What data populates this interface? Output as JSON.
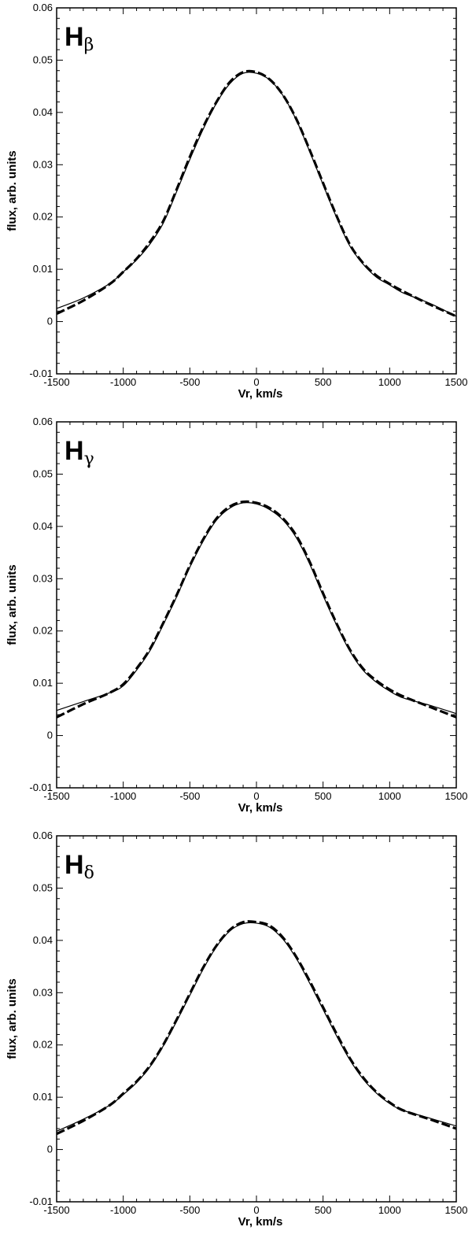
{
  "chart_data": [
    {
      "type": "line",
      "title": "",
      "panel_label": "H",
      "panel_label_sub": "β",
      "xlabel": "Vr, km/s",
      "ylabel": "flux, arb. units",
      "xlim": [
        -1500,
        1500
      ],
      "ylim": [
        -0.01,
        0.06
      ],
      "x_ticks": [
        -1500,
        -1000,
        -500,
        0,
        500,
        1000,
        1500
      ],
      "y_ticks": [
        -0.01,
        0,
        0.01,
        0.02,
        0.03,
        0.04,
        0.05,
        0.06
      ],
      "x_tick_labels": [
        "-1500",
        "-1000",
        "-500",
        "0",
        "500",
        "1000",
        "1500"
      ],
      "y_tick_labels": [
        "-0.01",
        "0",
        "0.01",
        "0.02",
        "0.03",
        "0.04",
        "0.05",
        "0.06"
      ],
      "grid": false,
      "series": [
        {
          "style": "solid",
          "x": [
            -1500,
            -1300,
            -1100,
            -1000,
            -900,
            -800,
            -700,
            -600,
            -500,
            -400,
            -300,
            -200,
            -100,
            0,
            100,
            200,
            300,
            400,
            500,
            600,
            700,
            800,
            900,
            1000,
            1100,
            1300,
            1500
          ],
          "y": [
            0.0025,
            0.0045,
            0.0073,
            0.0095,
            0.0118,
            0.0148,
            0.0188,
            0.0248,
            0.031,
            0.0368,
            0.0418,
            0.0455,
            0.0475,
            0.0475,
            0.0462,
            0.0432,
            0.0385,
            0.0325,
            0.0262,
            0.02,
            0.0145,
            0.011,
            0.0085,
            0.007,
            0.0055,
            0.0035,
            0.001
          ]
        },
        {
          "style": "dashed",
          "x": [
            -1500,
            -1300,
            -1100,
            -1000,
            -900,
            -800,
            -700,
            -600,
            -500,
            -400,
            -300,
            -200,
            -100,
            0,
            100,
            200,
            300,
            400,
            500,
            600,
            700,
            800,
            900,
            1000,
            1100,
            1300,
            1500
          ],
          "y": [
            0.0015,
            0.004,
            0.0072,
            0.0095,
            0.012,
            0.0152,
            0.0192,
            0.0252,
            0.0315,
            0.0372,
            0.042,
            0.0458,
            0.0477,
            0.0477,
            0.0463,
            0.0433,
            0.0387,
            0.0328,
            0.0265,
            0.0203,
            0.0148,
            0.0112,
            0.0088,
            0.0072,
            0.0058,
            0.0033,
            0.001
          ]
        }
      ]
    },
    {
      "type": "line",
      "title": "",
      "panel_label": "H",
      "panel_label_sub": "γ",
      "xlabel": "Vr, km/s",
      "ylabel": "flux, arb. units",
      "xlim": [
        -1500,
        1500
      ],
      "ylim": [
        -0.01,
        0.06
      ],
      "x_ticks": [
        -1500,
        -1000,
        -500,
        0,
        500,
        1000,
        1500
      ],
      "y_ticks": [
        -0.01,
        0,
        0.01,
        0.02,
        0.03,
        0.04,
        0.05,
        0.06
      ],
      "x_tick_labels": [
        "-1500",
        "-1000",
        "-500",
        "0",
        "500",
        "1000",
        "1500"
      ],
      "y_tick_labels": [
        "-0.01",
        "0",
        "0.01",
        "0.02",
        "0.03",
        "0.04",
        "0.05",
        "0.06"
      ],
      "grid": false,
      "series": [
        {
          "style": "solid",
          "x": [
            -1500,
            -1300,
            -1100,
            -1000,
            -900,
            -800,
            -700,
            -600,
            -500,
            -400,
            -300,
            -200,
            -100,
            0,
            100,
            200,
            300,
            400,
            500,
            600,
            700,
            800,
            900,
            1000,
            1100,
            1300,
            1500
          ],
          "y": [
            0.0048,
            0.0065,
            0.0082,
            0.0095,
            0.0125,
            0.0162,
            0.0212,
            0.0265,
            0.0322,
            0.0372,
            0.0412,
            0.0435,
            0.0445,
            0.0443,
            0.0432,
            0.0412,
            0.0378,
            0.0328,
            0.0268,
            0.0212,
            0.0162,
            0.0125,
            0.0102,
            0.0085,
            0.0072,
            0.0058,
            0.0042
          ]
        },
        {
          "style": "dashed",
          "x": [
            -1500,
            -1300,
            -1100,
            -1000,
            -900,
            -800,
            -700,
            -600,
            -500,
            -400,
            -300,
            -200,
            -100,
            0,
            100,
            200,
            300,
            400,
            500,
            600,
            700,
            800,
            900,
            1000,
            1100,
            1300,
            1500
          ],
          "y": [
            0.0035,
            0.006,
            0.0082,
            0.0098,
            0.0128,
            0.0165,
            0.0215,
            0.0268,
            0.0325,
            0.0375,
            0.0415,
            0.0438,
            0.0447,
            0.0445,
            0.0435,
            0.0415,
            0.0382,
            0.0332,
            0.0272,
            0.0215,
            0.0165,
            0.0128,
            0.0105,
            0.0088,
            0.0075,
            0.0055,
            0.0035
          ]
        }
      ]
    },
    {
      "type": "line",
      "title": "",
      "panel_label": "H",
      "panel_label_sub": "δ",
      "xlabel": "Vr, km/s",
      "ylabel": "flux, arb. units",
      "xlim": [
        -1500,
        1500
      ],
      "ylim": [
        -0.01,
        0.06
      ],
      "x_ticks": [
        -1500,
        -1000,
        -500,
        0,
        500,
        1000,
        1500
      ],
      "y_ticks": [
        -0.01,
        0,
        0.01,
        0.02,
        0.03,
        0.04,
        0.05,
        0.06
      ],
      "x_tick_labels": [
        "-1500",
        "-1000",
        "-500",
        "0",
        "500",
        "1000",
        "1500"
      ],
      "y_tick_labels": [
        "-0.01",
        "0",
        "0.01",
        "0.02",
        "0.03",
        "0.04",
        "0.05",
        "0.06"
      ],
      "grid": false,
      "series": [
        {
          "style": "solid",
          "x": [
            -1500,
            -1300,
            -1100,
            -1000,
            -900,
            -800,
            -700,
            -600,
            -500,
            -400,
            -300,
            -200,
            -100,
            0,
            100,
            200,
            300,
            400,
            500,
            600,
            700,
            800,
            900,
            1000,
            1100,
            1300,
            1500
          ],
          "y": [
            0.0035,
            0.0058,
            0.0085,
            0.0105,
            0.0128,
            0.0158,
            0.0198,
            0.0245,
            0.0295,
            0.0345,
            0.0388,
            0.0418,
            0.0432,
            0.0433,
            0.0425,
            0.0402,
            0.0365,
            0.0318,
            0.0268,
            0.0218,
            0.0172,
            0.0135,
            0.0108,
            0.0088,
            0.0075,
            0.006,
            0.0045
          ]
        },
        {
          "style": "dashed",
          "x": [
            -1500,
            -1300,
            -1100,
            -1000,
            -900,
            -800,
            -700,
            -600,
            -500,
            -400,
            -300,
            -200,
            -100,
            0,
            100,
            200,
            300,
            400,
            500,
            600,
            700,
            800,
            900,
            1000,
            1100,
            1300,
            1500
          ],
          "y": [
            0.003,
            0.0055,
            0.0085,
            0.0107,
            0.013,
            0.016,
            0.02,
            0.0248,
            0.0298,
            0.0348,
            0.039,
            0.042,
            0.0435,
            0.0435,
            0.0428,
            0.0405,
            0.0368,
            0.0322,
            0.0272,
            0.0222,
            0.0175,
            0.0138,
            0.011,
            0.009,
            0.0075,
            0.0058,
            0.004
          ]
        }
      ]
    }
  ]
}
